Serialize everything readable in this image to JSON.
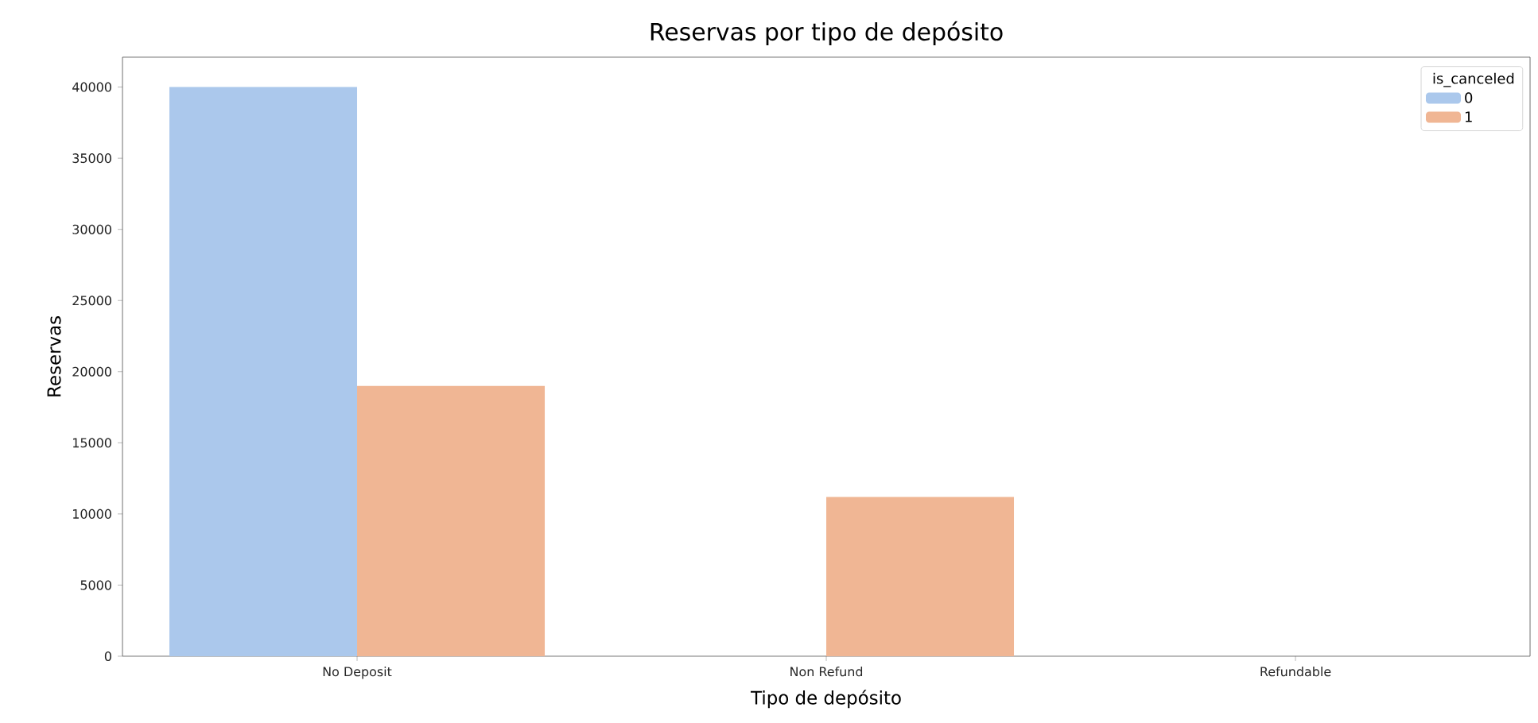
{
  "chart_data": {
    "type": "bar",
    "title": "Reservas por tipo de depósito",
    "xlabel": "Tipo de depósito",
    "ylabel": "Reservas",
    "legend_title": "is_canceled",
    "categories": [
      "No Deposit",
      "Non Refund",
      "Refundable"
    ],
    "series": [
      {
        "name": "0",
        "color": "#abc8ec",
        "values": [
          40000,
          0,
          0
        ]
      },
      {
        "name": "1",
        "color": "#f0b694",
        "values": [
          19000,
          11200,
          0
        ]
      }
    ],
    "ylim": [
      0,
      42100
    ],
    "yticks": [
      0,
      5000,
      10000,
      15000,
      20000,
      25000,
      30000,
      35000,
      40000
    ],
    "grid": false,
    "legend": "top right"
  }
}
